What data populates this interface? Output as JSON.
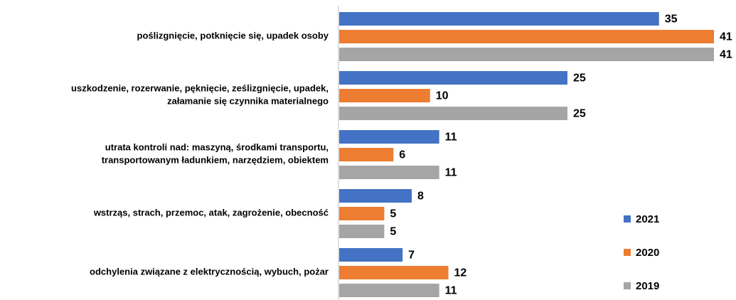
{
  "chart_data": {
    "type": "barh",
    "categories": [
      "poślizgnięcie, potknięcie się, upadek osoby",
      "uszkodzenie, rozerwanie, pęknięcie, ześlizgnięcie, upadek,\nzałamanie się czynnika materialnego",
      "utrata kontroli nad: maszyną, środkami transportu,\ntransportowanym ładunkiem, narzędziem, obiektem",
      "wstrząs, strach, przemoc, atak, zagrożenie, obecność",
      "odchylenia związane z elektrycznością, wybuch, pożar"
    ],
    "series": [
      {
        "name": "2021",
        "color": "#4472c4",
        "values": [
          35,
          25,
          11,
          8,
          7
        ]
      },
      {
        "name": "2020",
        "color": "#ed7d31",
        "values": [
          41,
          10,
          6,
          5,
          12
        ]
      },
      {
        "name": "2019",
        "color": "#a5a5a5",
        "values": [
          41,
          25,
          11,
          5,
          11
        ]
      }
    ],
    "legend": "right"
  }
}
